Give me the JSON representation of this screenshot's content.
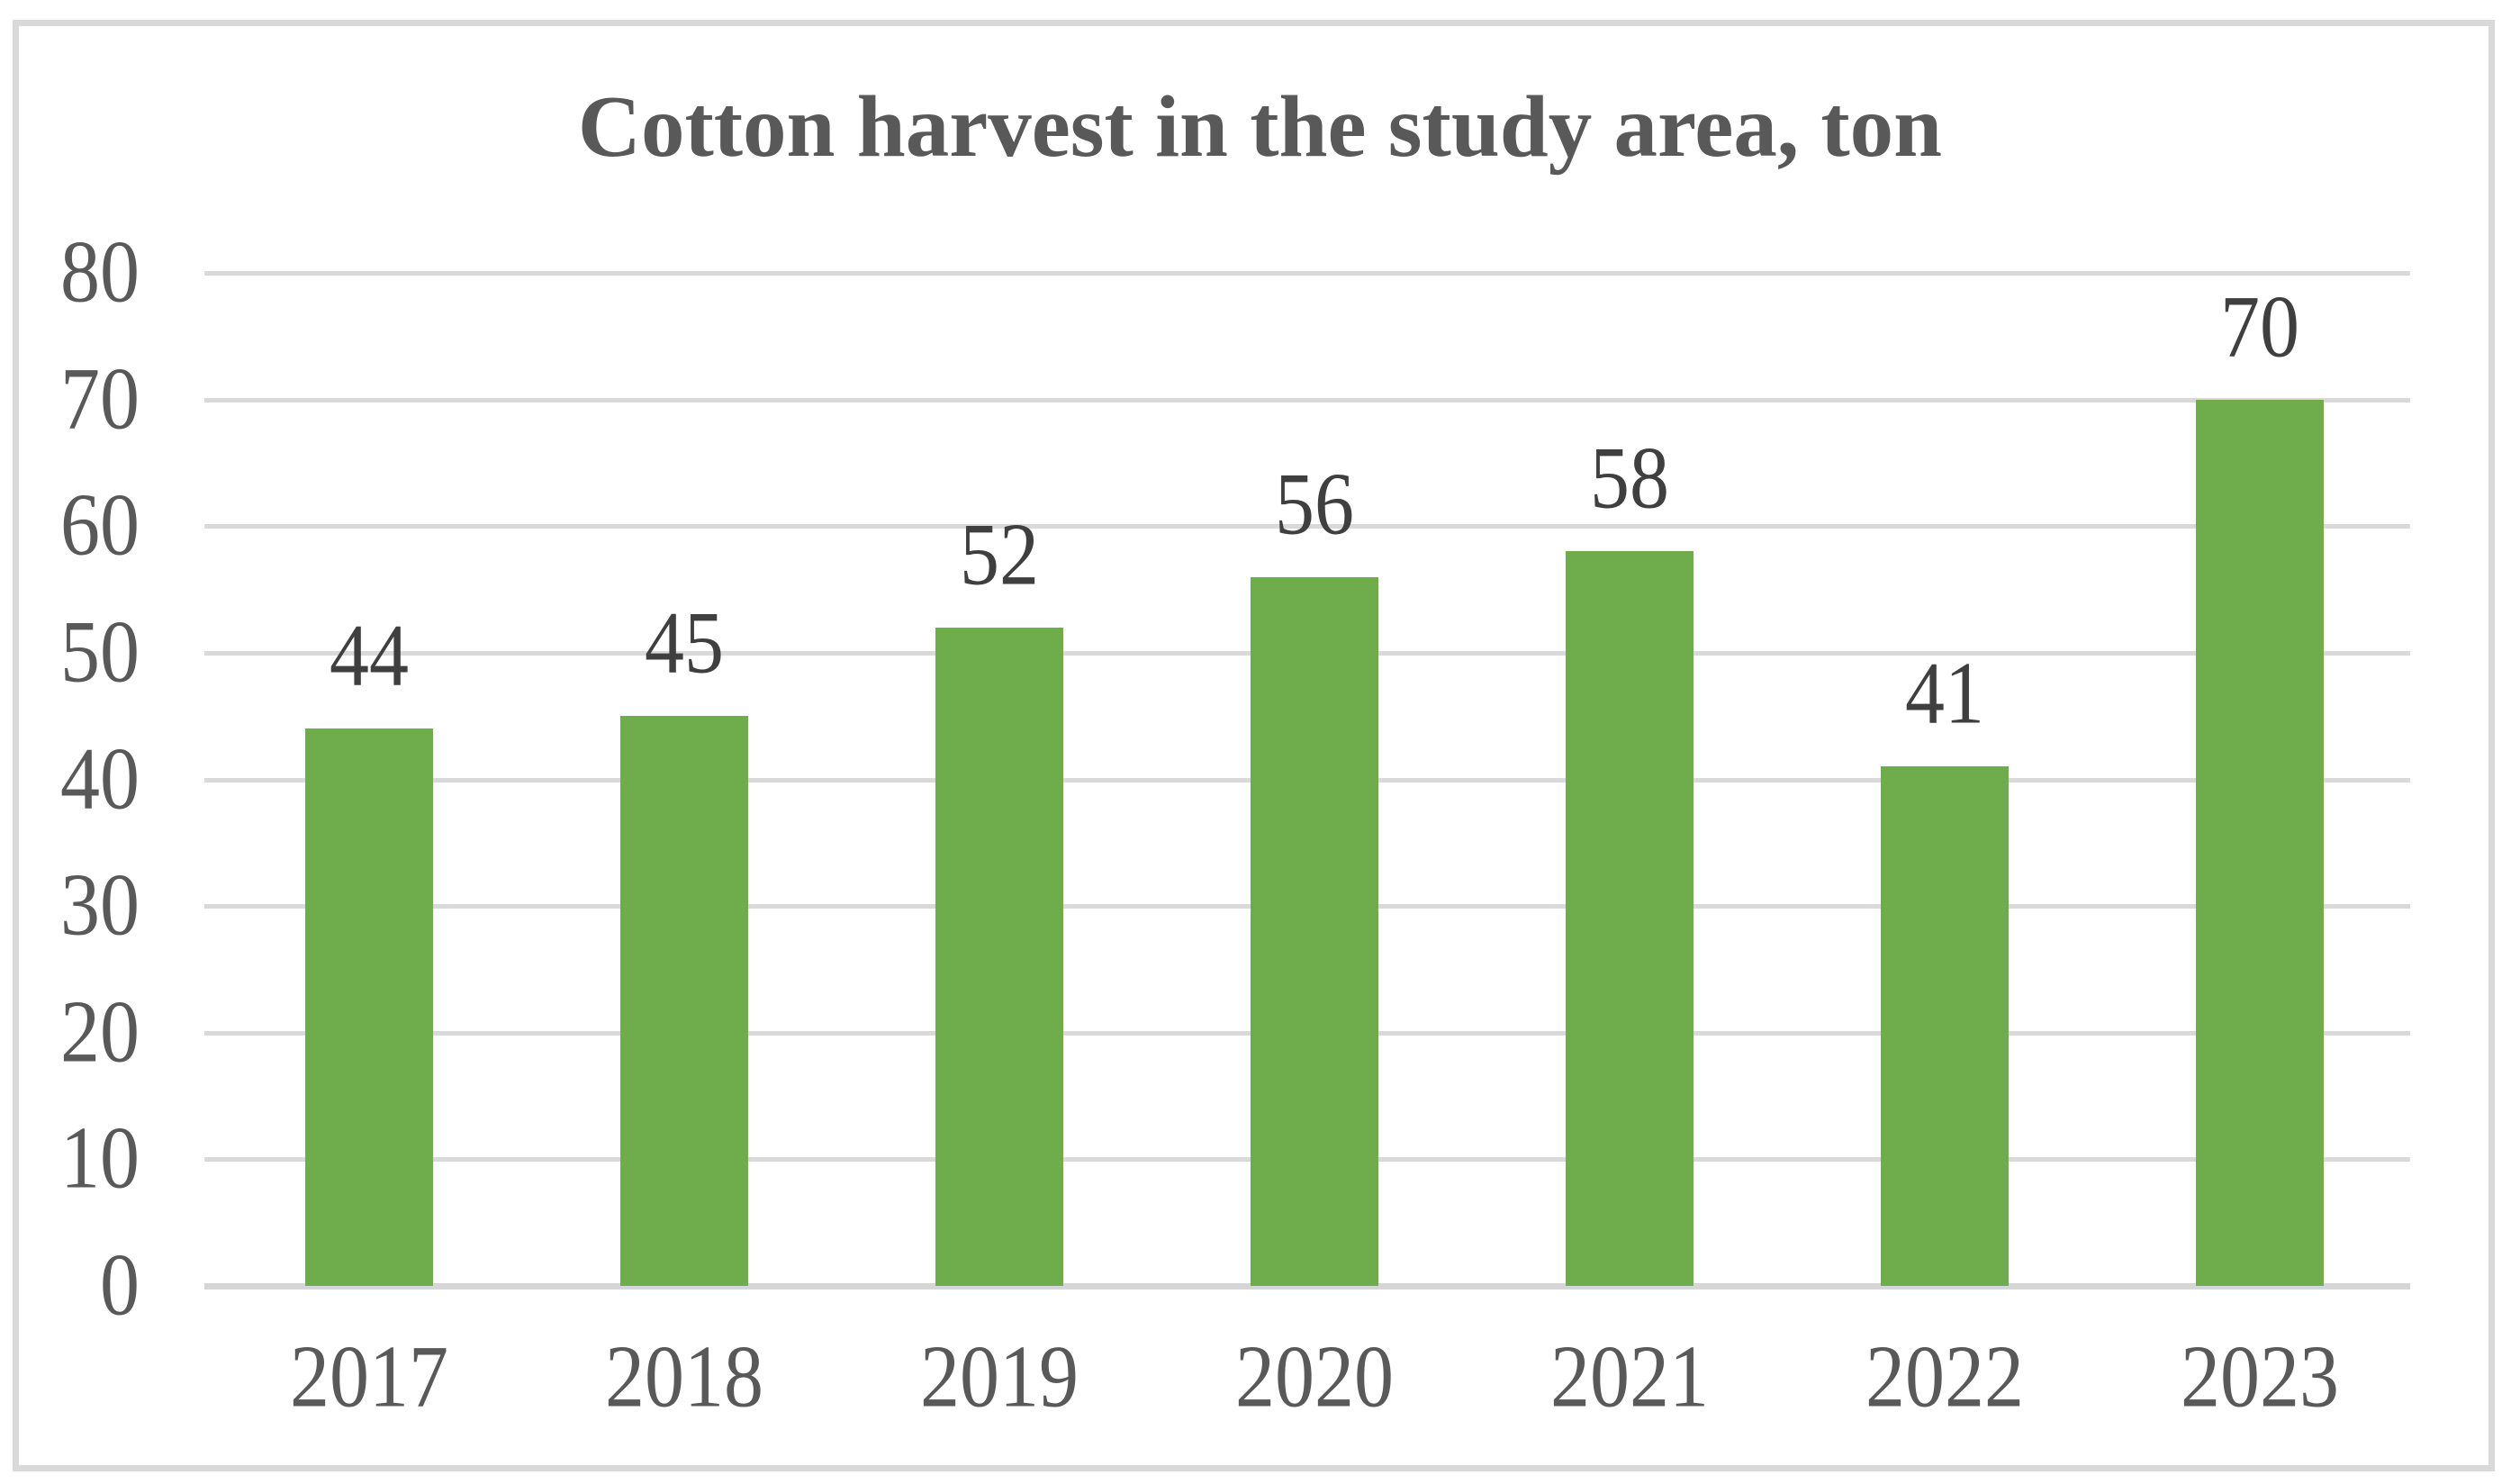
{
  "chart": {
    "title": "Cotton harvest in the study area, ton"
  },
  "chart_data": {
    "type": "bar",
    "title": "Cotton harvest in the study area, ton",
    "categories": [
      "2017",
      "2018",
      "2019",
      "2020",
      "2021",
      "2022",
      "2023"
    ],
    "values": [
      44,
      45,
      52,
      56,
      58,
      41,
      70
    ],
    "data_labels": [
      "44",
      "45",
      "52",
      "56",
      "58",
      "41",
      "70"
    ],
    "xlabel": "",
    "ylabel": "",
    "ylim": [
      0,
      80
    ],
    "ytick_step": 10,
    "y_tick_labels": [
      "0",
      "10",
      "20",
      "30",
      "40",
      "50",
      "60",
      "70",
      "80"
    ],
    "grid": true,
    "legend": "none"
  },
  "colors": {
    "bar": "#6FAC4B",
    "gridline": "#D9D9D9",
    "axis_line": "#D6D6D6",
    "axis_text": "#595959",
    "data_label_text": "#3F3F3F",
    "title_text": "#595959",
    "frame_border": "#D9D9D9",
    "background": "#FFFFFF"
  }
}
